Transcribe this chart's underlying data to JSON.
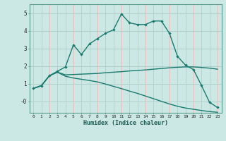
{
  "xlabel": "Humidex (Indice chaleur)",
  "bg_color": "#cce8e4",
  "grid_color_h": "#b0d0cc",
  "grid_color_v": "#e8b8b8",
  "line_color": "#1a7a6e",
  "xlim": [
    -0.5,
    23.5
  ],
  "ylim": [
    -0.65,
    5.5
  ],
  "xticks": [
    0,
    1,
    2,
    3,
    4,
    5,
    6,
    7,
    8,
    9,
    10,
    11,
    12,
    13,
    14,
    15,
    16,
    17,
    18,
    19,
    20,
    21,
    22,
    23
  ],
  "yticks": [
    0,
    1,
    2,
    3,
    4,
    5
  ],
  "ytick_labels": [
    "-0",
    "1",
    "2",
    "3",
    "4",
    "5"
  ],
  "line1_x": [
    0,
    1,
    2,
    3,
    4,
    5,
    6,
    7,
    8,
    9,
    10,
    11,
    12,
    13,
    14,
    15,
    16,
    17,
    18,
    19,
    20,
    21,
    22,
    23
  ],
  "line1_y": [
    0.73,
    0.88,
    1.45,
    1.7,
    1.95,
    3.2,
    2.65,
    3.25,
    3.55,
    3.85,
    4.05,
    4.95,
    4.45,
    4.35,
    4.35,
    4.55,
    4.55,
    3.85,
    2.55,
    2.05,
    1.8,
    0.9,
    -0.05,
    -0.35
  ],
  "line2_x": [
    0,
    1,
    2,
    3,
    4,
    5,
    6,
    7,
    8,
    9,
    10,
    11,
    12,
    13,
    14,
    15,
    16,
    17,
    18,
    19,
    20,
    21,
    22,
    23
  ],
  "line2_y": [
    0.73,
    0.9,
    1.45,
    1.65,
    1.5,
    1.52,
    1.54,
    1.56,
    1.58,
    1.62,
    1.65,
    1.68,
    1.72,
    1.75,
    1.78,
    1.82,
    1.86,
    1.9,
    1.93,
    1.95,
    1.95,
    1.92,
    1.88,
    1.82
  ],
  "line3_x": [
    0,
    1,
    2,
    3,
    4,
    5,
    6,
    7,
    8,
    9,
    10,
    11,
    12,
    13,
    14,
    15,
    16,
    17,
    18,
    19,
    20,
    21,
    22,
    23
  ],
  "line3_y": [
    0.73,
    0.88,
    1.45,
    1.65,
    1.42,
    1.32,
    1.25,
    1.18,
    1.1,
    0.98,
    0.85,
    0.72,
    0.58,
    0.45,
    0.3,
    0.15,
    0.0,
    -0.15,
    -0.28,
    -0.38,
    -0.45,
    -0.52,
    -0.58,
    -0.62
  ]
}
